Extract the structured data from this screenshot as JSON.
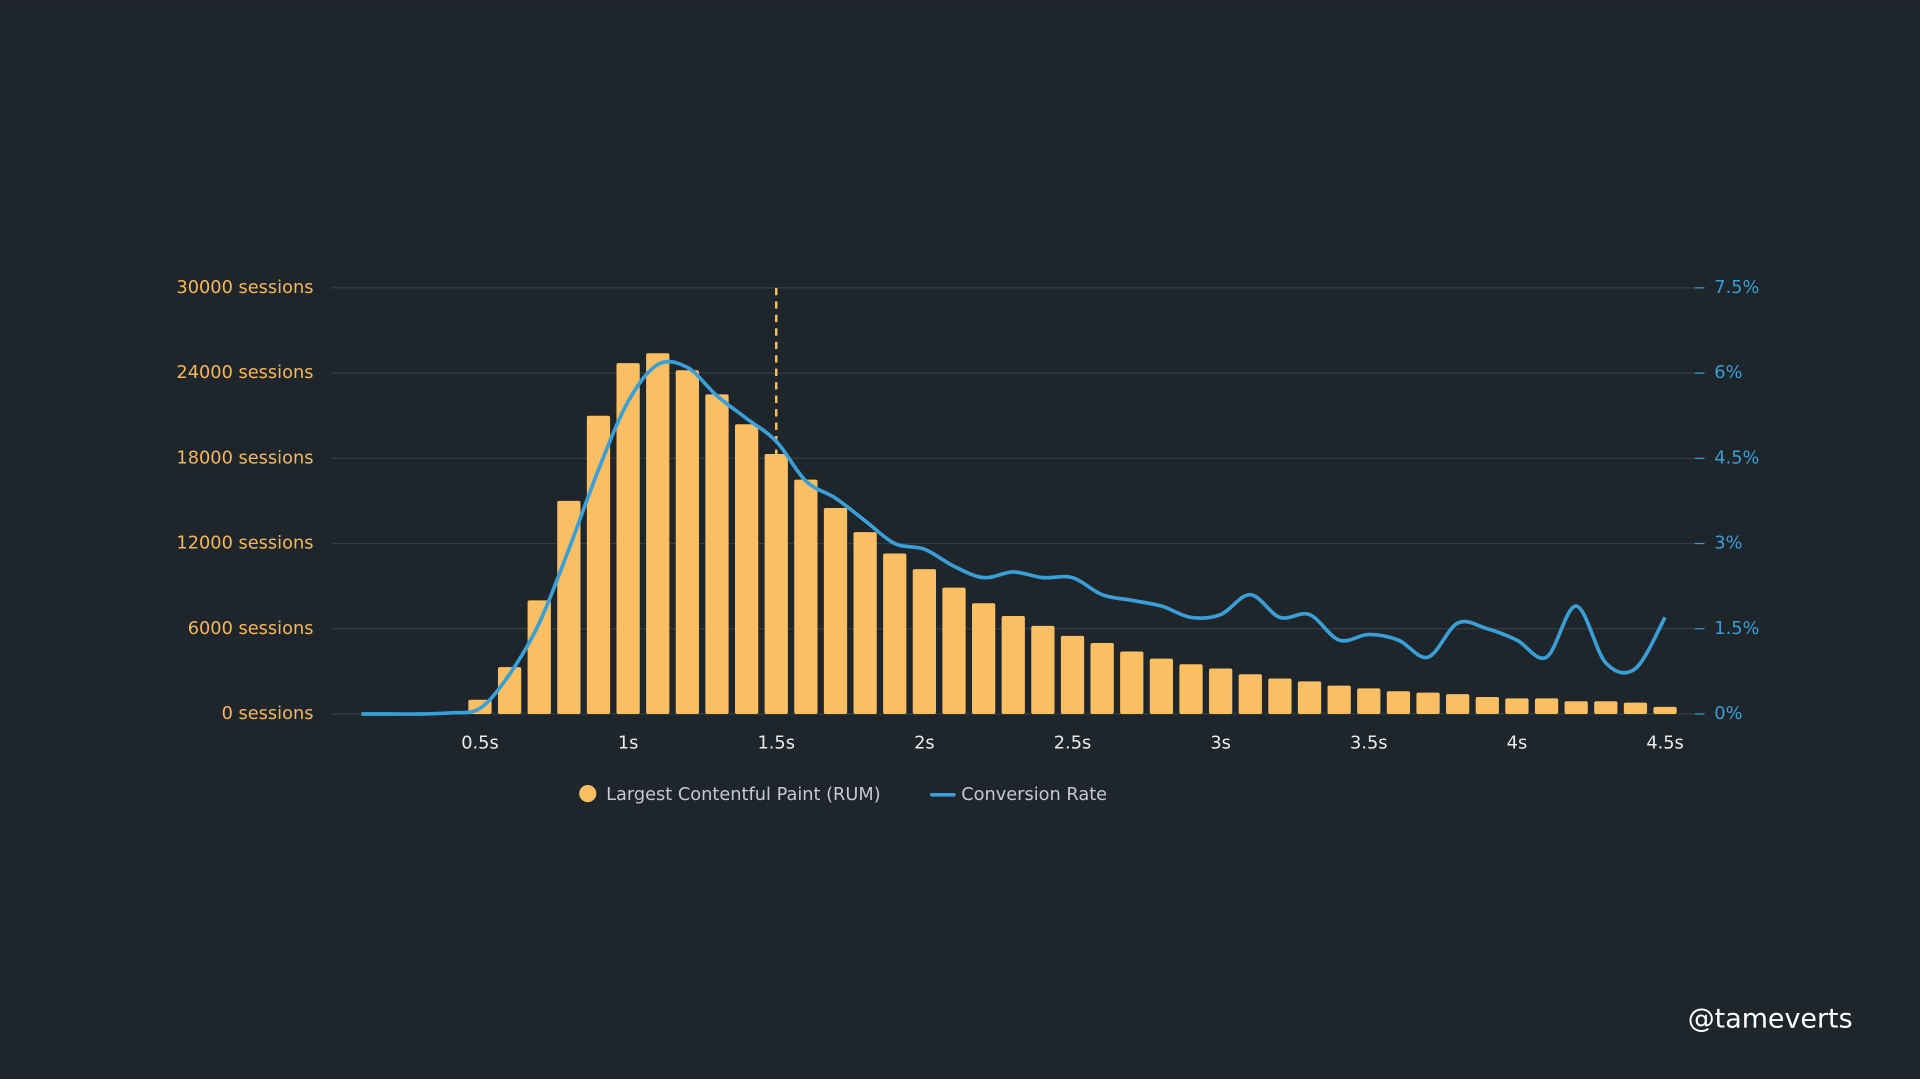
{
  "chart_data": {
    "type": "bar",
    "x": [
      0.5,
      0.6,
      0.7,
      0.8,
      0.9,
      1.0,
      1.1,
      1.2,
      1.3,
      1.4,
      1.5,
      1.6,
      1.7,
      1.8,
      1.9,
      2.0,
      2.1,
      2.2,
      2.3,
      2.4,
      2.5,
      2.6,
      2.7,
      2.8,
      2.9,
      3.0,
      3.1,
      3.2,
      3.3,
      3.4,
      3.5,
      3.6,
      3.7,
      3.8,
      3.9,
      4.0,
      4.1,
      4.2,
      4.3,
      4.4,
      4.5
    ],
    "series": [
      {
        "name": "Largest Contentful Paint (RUM)",
        "color": "#fbbf63",
        "values": [
          1000,
          3300,
          8000,
          15000,
          21000,
          24700,
          25400,
          24200,
          22500,
          20400,
          18300,
          16500,
          14500,
          12800,
          11300,
          10200,
          8900,
          7800,
          6900,
          6200,
          5500,
          5000,
          4400,
          3900,
          3500,
          3200,
          2800,
          2500,
          2300,
          2000,
          1800,
          1600,
          1500,
          1400,
          1200,
          1100,
          1100,
          900,
          900,
          800,
          500
        ]
      },
      {
        "name": "Conversion Rate",
        "color": "#3a9fd6",
        "type": "line",
        "axis": "y2",
        "x": [
          0.1,
          0.2,
          0.3,
          0.4,
          0.5,
          0.6,
          0.7,
          0.8,
          0.9,
          1.0,
          1.1,
          1.2,
          1.3,
          1.4,
          1.5,
          1.6,
          1.7,
          1.8,
          1.9,
          2.0,
          2.1,
          2.2,
          2.3,
          2.4,
          2.5,
          2.6,
          2.7,
          2.8,
          2.9,
          3.0,
          3.1,
          3.2,
          3.3,
          3.4,
          3.5,
          3.6,
          3.7,
          3.8,
          3.9,
          4.0,
          4.1,
          4.2,
          4.3,
          4.4,
          4.5
        ],
        "values": [
          0,
          0,
          0,
          0.02,
          0.1,
          0.7,
          1.6,
          2.9,
          4.3,
          5.5,
          6.15,
          6.1,
          5.6,
          5.2,
          4.8,
          4.1,
          3.8,
          3.4,
          3.0,
          2.9,
          2.6,
          2.4,
          2.5,
          2.4,
          2.4,
          2.1,
          2.0,
          1.9,
          1.7,
          1.75,
          2.1,
          1.7,
          1.75,
          1.3,
          1.4,
          1.3,
          1.0,
          1.6,
          1.5,
          1.3,
          1.0,
          1.9,
          0.9,
          0.8,
          1.7
        ]
      }
    ],
    "reference_line": {
      "x": 1.5
    },
    "xlim": [
      0,
      4.6
    ],
    "xticks": [
      {
        "value": 0.5,
        "label": "0.5s"
      },
      {
        "value": 1,
        "label": "1s"
      },
      {
        "value": 1.5,
        "label": "1.5s"
      },
      {
        "value": 2,
        "label": "2s"
      },
      {
        "value": 2.5,
        "label": "2.5s"
      },
      {
        "value": 3,
        "label": "3s"
      },
      {
        "value": 3.5,
        "label": "3.5s"
      },
      {
        "value": 4,
        "label": "4s"
      },
      {
        "value": 4.5,
        "label": "4.5s"
      }
    ],
    "ylim": [
      0,
      30000
    ],
    "yticks": [
      {
        "value": 0,
        "label": "0 sessions"
      },
      {
        "value": 6000,
        "label": "6000 sessions"
      },
      {
        "value": 12000,
        "label": "12000 sessions"
      },
      {
        "value": 18000,
        "label": "18000 sessions"
      },
      {
        "value": 24000,
        "label": "24000 sessions"
      },
      {
        "value": 30000,
        "label": "30000 sessions"
      }
    ],
    "y2lim": [
      0,
      7.5
    ],
    "y2ticks": [
      {
        "value": 0,
        "label": "0%"
      },
      {
        "value": 1.5,
        "label": "1.5%"
      },
      {
        "value": 3,
        "label": "3%"
      },
      {
        "value": 4.5,
        "label": "4.5%"
      },
      {
        "value": 6,
        "label": "6%"
      },
      {
        "value": 7.5,
        "label": "7.5%"
      }
    ],
    "grid": true,
    "legend": "bottom"
  },
  "watermark": "@tameverts"
}
